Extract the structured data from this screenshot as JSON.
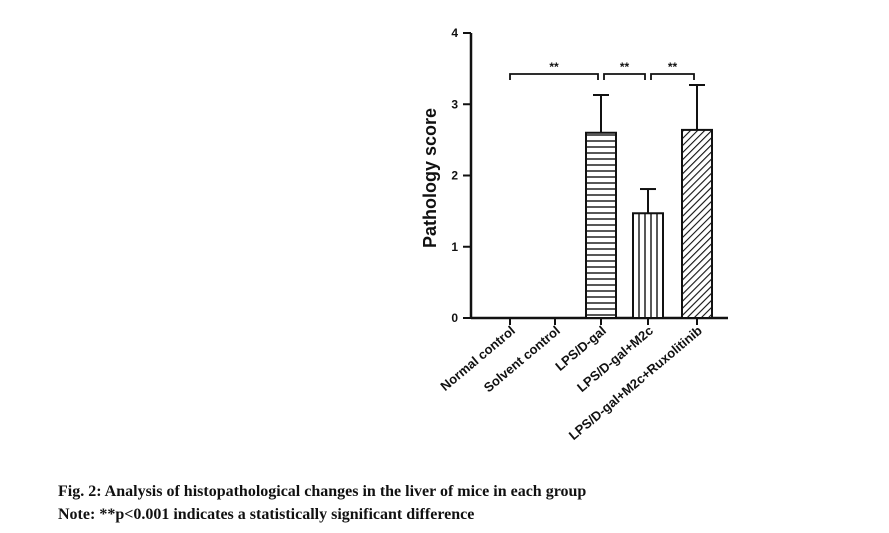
{
  "chart_data": {
    "type": "bar",
    "ylabel": "Pathology score",
    "ylim": [
      0,
      4
    ],
    "yticks": [
      "0",
      "1",
      "2",
      "3",
      "4"
    ],
    "categories": [
      "Normal control",
      "Solvent control",
      "LPS/D-gal",
      "LPS/D-gal+M2c",
      "LPS/D-gal+M2c+Ruxolitinib"
    ],
    "values": [
      0,
      0,
      2.6,
      1.47,
      2.64
    ],
    "errors": [
      0,
      0,
      0.53,
      0.34,
      0.63
    ],
    "patterns": [
      "none",
      "none",
      "horizontal",
      "vertical",
      "diagonal"
    ],
    "significance": [
      {
        "from": 0,
        "to": 2,
        "label": "**"
      },
      {
        "from": 2,
        "to": 3,
        "label": "**"
      },
      {
        "from": 3,
        "to": 4,
        "label": "**"
      }
    ],
    "grid": false,
    "legend": "none"
  },
  "caption": {
    "title": "Fig. 2: Analysis of histopathological changes in the liver of mice in each group",
    "note": "Note: **p<0.001 indicates a statistically significant difference"
  }
}
